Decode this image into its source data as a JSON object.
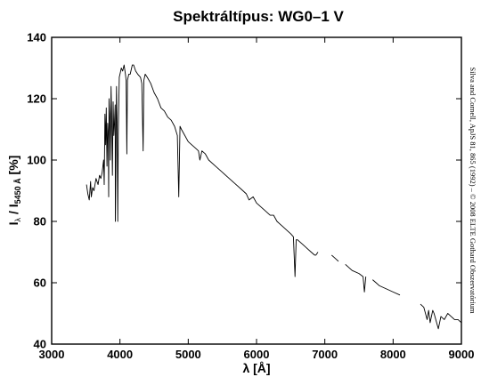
{
  "chart_data": {
    "type": "line",
    "title": "Spektráltípus: WG0–1 V",
    "xlabel": "λ [Å]",
    "ylabel": {
      "prefix": "I",
      "prefix_sub": "λ",
      "mid": " / I",
      "sub": "5450 Å",
      "suffix": " [%]"
    },
    "xlim": [
      3000,
      9000
    ],
    "ylim": [
      40,
      140
    ],
    "xticks": [
      3000,
      4000,
      5000,
      6000,
      7000,
      8000,
      9000
    ],
    "yticks": [
      40,
      60,
      80,
      100,
      120,
      140
    ],
    "grid": false,
    "credit": "Silva and Cornell, ApJS 81, 865 (1992) – © 2008 ELTE Gothard Obszervatórium",
    "series": [
      {
        "x": [
          3510,
          3530,
          3550,
          3570,
          3580,
          3600,
          3620,
          3650,
          3680,
          3700,
          3720,
          3740,
          3760,
          3770,
          3780,
          3790,
          3800,
          3810,
          3820,
          3830,
          3835,
          3840,
          3850,
          3860,
          3870,
          3880,
          3889,
          3900,
          3910,
          3920,
          3930,
          3933,
          3940,
          3950,
          3960,
          3968,
          3975,
          3990,
          4000,
          4020,
          4040,
          4060,
          4080,
          4090,
          4101,
          4110,
          4130,
          4150,
          4180,
          4200,
          4230,
          4260,
          4300,
          4320,
          4340,
          4350,
          4370,
          4400,
          4450,
          4500,
          4550,
          4600,
          4650,
          4700,
          4750,
          4800,
          4840,
          4861,
          4880,
          4900,
          4950,
          5000,
          5050,
          5100,
          5150,
          5170,
          5200,
          5250,
          5300,
          5400,
          5500,
          5600,
          5700,
          5800,
          5850,
          5890,
          5950,
          6000,
          6100,
          6200,
          6250,
          6300,
          6350,
          6400,
          6450,
          6500,
          6540,
          6563,
          6580,
          6600,
          6650,
          6700,
          6750,
          6800,
          6850,
          6870,
          6900
        ],
        "y": [
          92,
          89,
          87,
          93,
          88,
          91,
          90,
          94,
          92,
          95,
          94,
          96,
          100,
          92,
          115,
          105,
          117,
          98,
          112,
          108,
          88,
          120,
          114,
          100,
          124,
          112,
          95,
          119,
          108,
          112,
          118,
          80,
          100,
          124,
          110,
          80,
          108,
          127,
          128,
          130,
          129,
          131,
          128,
          126,
          102,
          126,
          128,
          128,
          131,
          131,
          129,
          128,
          127,
          125,
          103,
          126,
          128,
          127,
          125,
          122,
          120,
          117,
          116,
          114,
          113,
          111,
          108,
          88,
          111,
          110,
          108,
          106,
          105,
          104,
          103,
          100,
          103,
          102,
          100,
          98,
          96,
          94,
          92,
          90,
          89,
          87,
          88,
          86,
          84,
          82,
          82,
          80,
          79,
          78,
          77,
          76,
          75,
          62,
          74,
          74,
          73,
          72,
          71,
          70,
          69,
          69,
          70
        ]
      },
      {
        "x": [
          7100,
          7150,
          7200
        ],
        "y": [
          69,
          68,
          67
        ]
      },
      {
        "x": [
          7300,
          7400,
          7500,
          7560,
          7580,
          7600
        ],
        "y": [
          66,
          64,
          63,
          62,
          57,
          62
        ]
      },
      {
        "x": [
          7700,
          7750,
          7800,
          7900,
          8000,
          8100
        ],
        "y": [
          61,
          60,
          59,
          58,
          57,
          56
        ]
      },
      {
        "x": [
          8400,
          8450,
          8498,
          8520,
          8542,
          8580,
          8600,
          8662,
          8700,
          8750,
          8800,
          8850,
          8900,
          8950,
          9000
        ],
        "y": [
          53,
          52,
          48,
          51,
          47,
          51,
          50,
          45,
          49,
          48,
          50,
          49,
          48,
          48,
          47
        ]
      }
    ]
  }
}
